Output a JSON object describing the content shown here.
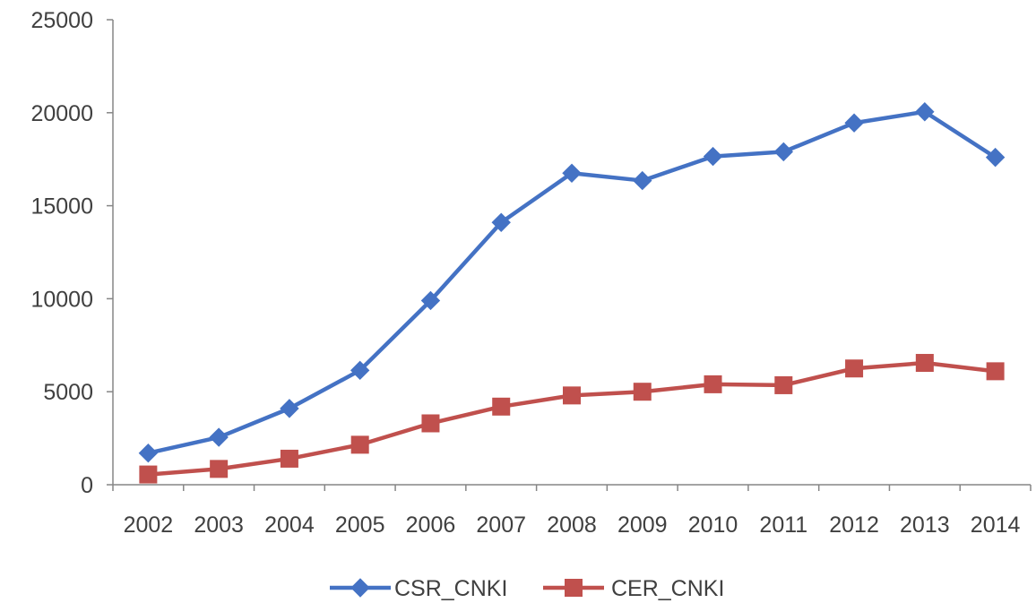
{
  "chart_data": {
    "type": "line",
    "title": "",
    "xlabel": "",
    "ylabel": "",
    "categories": [
      "2002",
      "2003",
      "2004",
      "2005",
      "2006",
      "2007",
      "2008",
      "2009",
      "2010",
      "2011",
      "2012",
      "2013",
      "2014"
    ],
    "ylim": [
      0,
      25000
    ],
    "yticks": [
      "0",
      "5000",
      "10000",
      "15000",
      "20000",
      "25000"
    ],
    "grid": false,
    "legend_position": "bottom",
    "series": [
      {
        "name": "CSR_CNKI",
        "color": "#4472C4",
        "marker": "diamond",
        "values": [
          1700,
          2550,
          4100,
          6150,
          9900,
          14100,
          16750,
          16350,
          17650,
          17900,
          19450,
          20050,
          17600
        ]
      },
      {
        "name": "CER_CNKI",
        "color": "#C0504D",
        "marker": "square",
        "values": [
          550,
          850,
          1400,
          2150,
          3300,
          4200,
          4800,
          5000,
          5400,
          5350,
          6250,
          6550,
          6100
        ]
      }
    ]
  }
}
